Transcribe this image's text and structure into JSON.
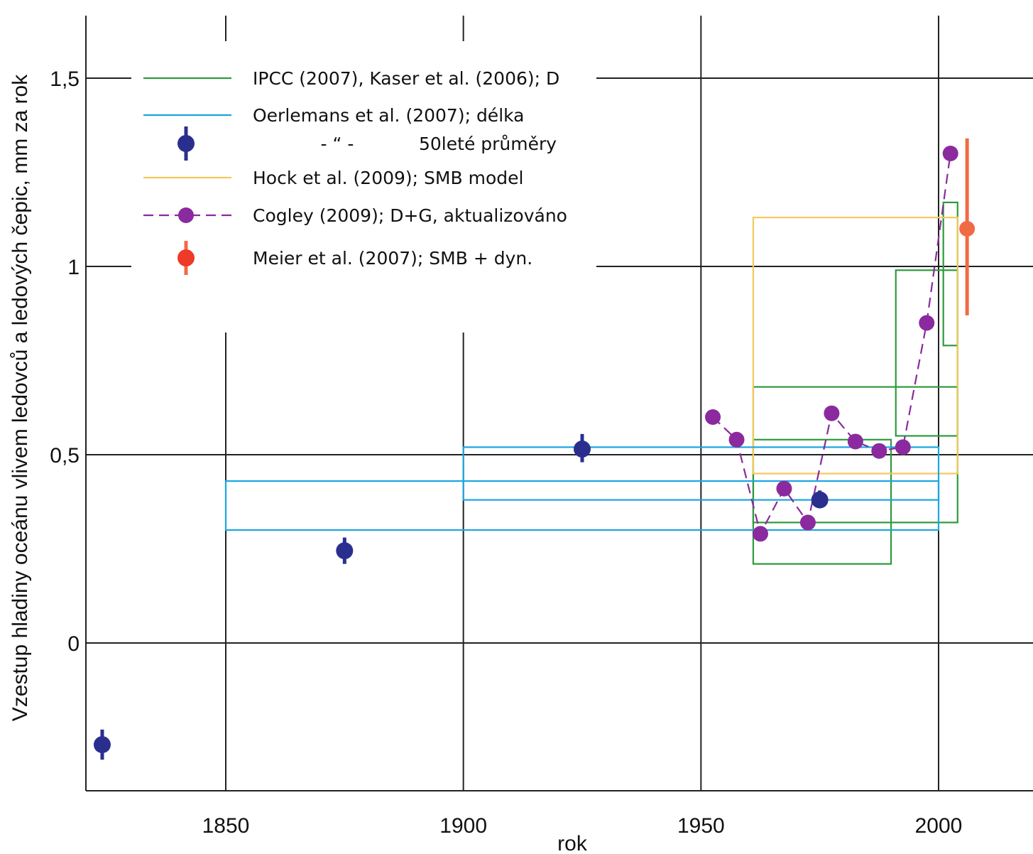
{
  "colors": {
    "ipcc": "#2e9a3c",
    "oerlemans": "#1ba6e2",
    "oerlemans_marker": "#2a2f8f",
    "hock": "#f5c85a",
    "cogley": "#8b2a9e",
    "meier_marker": "#ee3a26",
    "meier_bar": "#f06a44",
    "grid": "#222222"
  },
  "chart_data": {
    "type": "scatter",
    "xlabel": "rok",
    "ylabel": "Vzestup hladiny oceánu vlivem ledovců a ledových čepic, mm za rok",
    "xlim": [
      1820,
      2020
    ],
    "ylim": [
      -0.38,
      1.66
    ],
    "x_ticks": [
      1850,
      1900,
      1950,
      2000
    ],
    "x_tick_labels": [
      "1850",
      "1900",
      "1950",
      "2000"
    ],
    "y_ticks": [
      0,
      0.5,
      1,
      1.5
    ],
    "y_tick_labels": [
      "0",
      "0,5",
      "1",
      "1,5"
    ],
    "grid": true,
    "legend_position": "top-left",
    "legend": [
      {
        "key": "ipcc",
        "label": "IPCC (2007), Kaser et al. (2006); D",
        "symbol": "line"
      },
      {
        "key": "oerlemans",
        "label": "Oerlemans et al. (2007); délka",
        "symbol": "line"
      },
      {
        "key": "oerlemans_marker",
        "label_mid": "- “ -",
        "label": "50leté průměry",
        "symbol": "dot-errorbar"
      },
      {
        "key": "hock",
        "label": "Hock et al. (2009); SMB model",
        "symbol": "line"
      },
      {
        "key": "cogley",
        "label": "Cogley (2009); D+G, aktualizováno",
        "symbol": "dashed-dot"
      },
      {
        "key": "meier_marker",
        "label": "Meier et al. (2007); SMB + dyn.",
        "symbol": "dot-errorbar"
      }
    ],
    "series": [
      {
        "key": "ipcc",
        "kind": "boxes",
        "boxes": [
          {
            "x0": 1961,
            "x1": 1990,
            "y0": 0.21,
            "y1": 0.54
          },
          {
            "x0": 1961,
            "x1": 2004,
            "y0": 0.32,
            "y1": 0.68
          },
          {
            "x0": 1991,
            "x1": 2004,
            "y0": 0.55,
            "y1": 0.99
          },
          {
            "x0": 2001,
            "x1": 2004,
            "y0": 0.79,
            "y1": 1.17
          }
        ]
      },
      {
        "key": "hock",
        "kind": "boxes",
        "boxes": [
          {
            "x0": 1961,
            "x1": 2004,
            "y0": 0.45,
            "y1": 1.13
          }
        ]
      },
      {
        "key": "oerlemans",
        "kind": "boxes",
        "boxes": [
          {
            "x0": 1850,
            "x1": 2000,
            "y0": 0.3,
            "y1": 0.43
          },
          {
            "x0": 1900,
            "x1": 2000,
            "y0": 0.38,
            "y1": 0.52
          }
        ]
      },
      {
        "key": "oerlemans_marker",
        "kind": "points",
        "points": [
          {
            "x": 1824,
            "y": -0.27,
            "lo": -0.31,
            "hi": -0.23
          },
          {
            "x": 1875,
            "y": 0.245,
            "lo": 0.21,
            "hi": 0.28
          },
          {
            "x": 1925,
            "y": 0.515,
            "lo": 0.48,
            "hi": 0.555
          },
          {
            "x": 1975,
            "y": 0.38,
            "lo": 0.36,
            "hi": 0.405
          }
        ]
      },
      {
        "key": "cogley",
        "kind": "line-points",
        "x": [
          1952.5,
          1957.5,
          1962.5,
          1967.5,
          1972.5,
          1977.5,
          1982.5,
          1987.5,
          1992.5,
          1997.5,
          2002.5
        ],
        "y": [
          0.6,
          0.54,
          0.29,
          0.41,
          0.32,
          0.61,
          0.535,
          0.51,
          0.52,
          0.85,
          1.3
        ]
      },
      {
        "key": "meier_marker",
        "kind": "points",
        "points": [
          {
            "x": 2006,
            "y": 1.1,
            "lo": 0.87,
            "hi": 1.34
          }
        ]
      }
    ]
  }
}
